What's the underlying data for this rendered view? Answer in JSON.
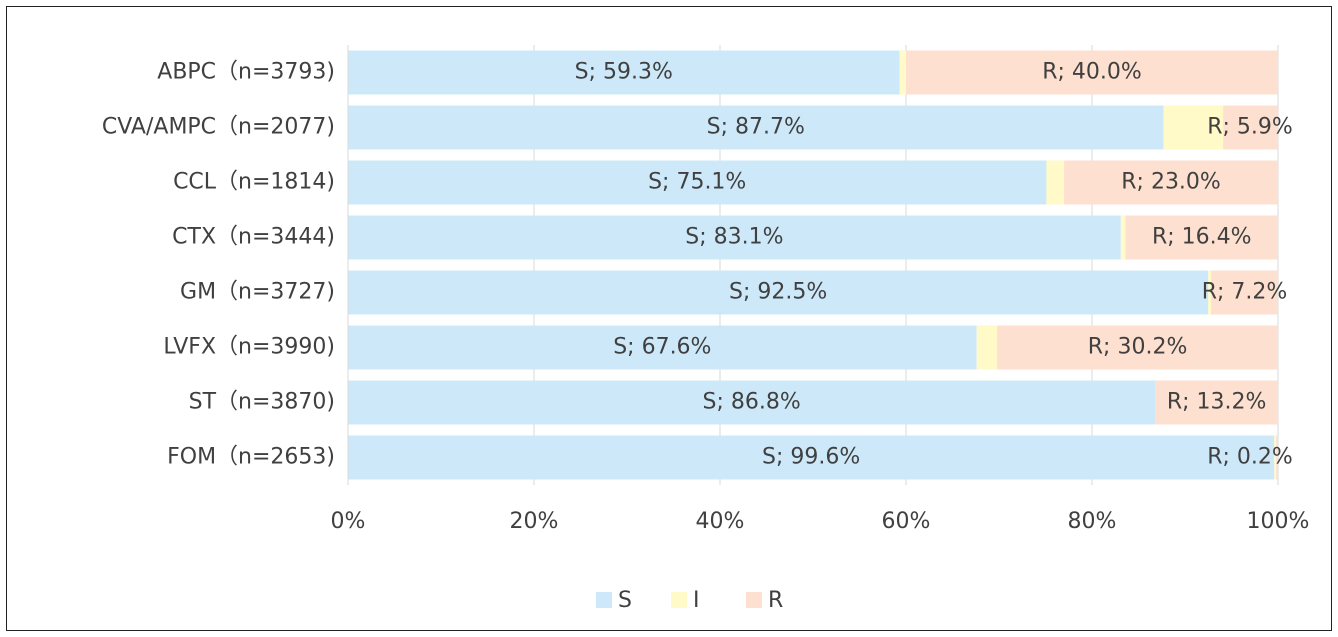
{
  "chart_data": {
    "type": "stacked-bar-horizontal",
    "categories": [
      "ABPC（n=3793)",
      "CVA/AMPC（n=2077)",
      "CCL（n=1814)",
      "CTX（n=3444)",
      "GM（n=3727)",
      "LVFX（n=3990)",
      "ST（n=3870)",
      "FOM（n=2653)"
    ],
    "series": [
      {
        "name": "S",
        "color": "#cde9f9",
        "values": [
          59.3,
          87.7,
          75.1,
          83.1,
          92.5,
          67.6,
          86.8,
          99.6
        ],
        "value_labels": [
          "S; 59.3%",
          "S; 87.7%",
          "S; 75.1%",
          "S; 83.1%",
          "S; 92.5%",
          "S; 67.6%",
          "S; 86.8%",
          "S; 99.6%"
        ]
      },
      {
        "name": "I",
        "color": "#fffac8",
        "values": [
          0.7,
          6.4,
          1.9,
          0.5,
          0.3,
          2.2,
          0,
          0.2
        ]
      },
      {
        "name": "R",
        "color": "#fde0d0",
        "values": [
          40.0,
          5.9,
          23.0,
          16.4,
          7.2,
          30.2,
          13.2,
          0.2
        ],
        "value_labels": [
          "R; 40.0%",
          "R; 5.9%",
          "R; 23.0%",
          "R; 16.4%",
          "R; 7.2%",
          "R; 30.2%",
          "R; 13.2%",
          "R; 0.2%"
        ]
      }
    ],
    "xlim": [
      0,
      100
    ],
    "xticks": [
      {
        "value": 0,
        "label": "0%"
      },
      {
        "value": 20,
        "label": "20%"
      },
      {
        "value": 40,
        "label": "40%"
      },
      {
        "value": 60,
        "label": "60%"
      },
      {
        "value": 80,
        "label": "80%"
      },
      {
        "value": 100,
        "label": "100%"
      }
    ],
    "grid": true,
    "legend": "bottom"
  }
}
